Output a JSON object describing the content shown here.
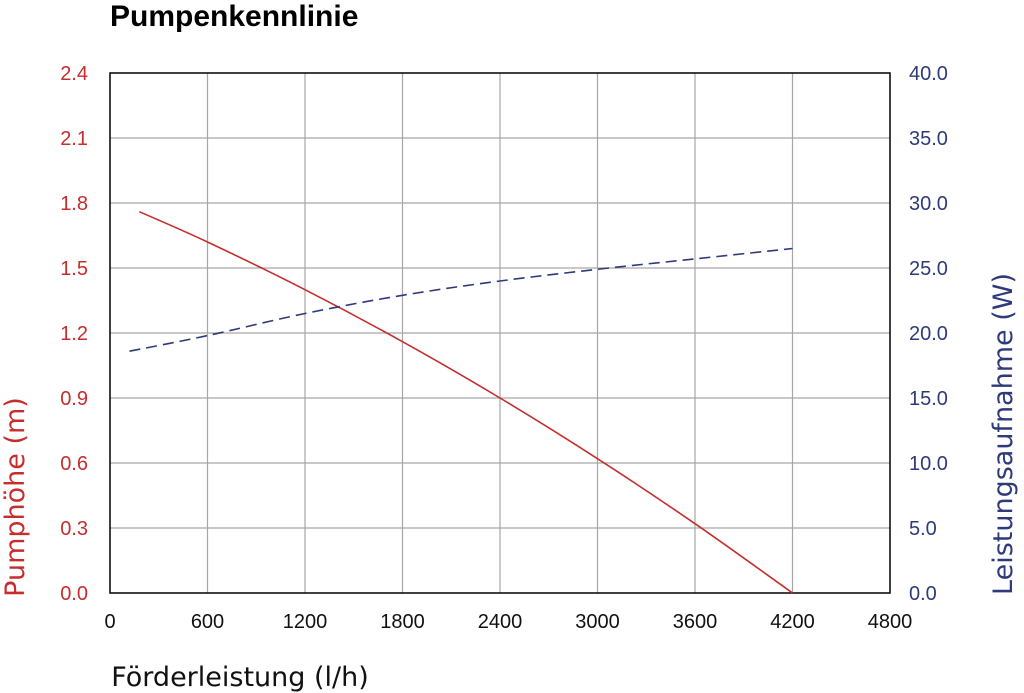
{
  "chart_data": {
    "type": "line",
    "title": "Pumpenkennlinie",
    "xlabel": "Förderleistung (l/h)",
    "ylabel_left": "Pumphöhe (m)",
    "ylabel_right": "Leistungsaufnahme (W)",
    "xlim": [
      0,
      4800
    ],
    "ylim_left": [
      0.0,
      2.4
    ],
    "ylim_right": [
      0.0,
      40.0
    ],
    "x_ticks": [
      "0",
      "600",
      "1200",
      "1800",
      "2400",
      "3000",
      "3600",
      "4200",
      "4800"
    ],
    "y_left_ticks": [
      "0.0",
      "0.3",
      "0.6",
      "0.9",
      "1.2",
      "1.5",
      "1.8",
      "2.1",
      "2.4"
    ],
    "y_right_ticks": [
      "0.0",
      "5.0",
      "10.0",
      "15.0",
      "20.0",
      "25.0",
      "30.0",
      "35.0",
      "40.0"
    ],
    "grid": true,
    "colors": {
      "left_axis": "#c62d2d",
      "right_axis": "#2e3a7a",
      "grid": "#a6a6a6"
    },
    "series": [
      {
        "axis": "left",
        "style": "solid",
        "color": "#c62d2d",
        "x": [
          180,
          600,
          1200,
          1800,
          2400,
          3000,
          3600,
          4200
        ],
        "y": [
          1.76,
          1.62,
          1.4,
          1.16,
          0.9,
          0.62,
          0.32,
          0.0
        ]
      },
      {
        "axis": "right",
        "style": "dashed",
        "color": "#2e3a7a",
        "x": [
          120,
          600,
          1200,
          1800,
          2400,
          3000,
          3600,
          4200
        ],
        "y": [
          18.6,
          19.8,
          21.5,
          22.9,
          24.0,
          24.9,
          25.7,
          26.5
        ]
      }
    ]
  }
}
